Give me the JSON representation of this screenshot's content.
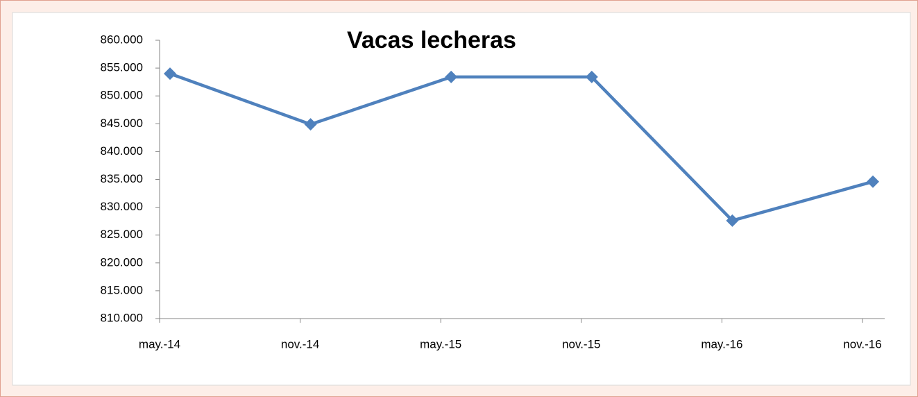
{
  "chart_data": {
    "type": "line",
    "title": "Vacas lecheras",
    "categories": [
      "may.-14",
      "nov.-14",
      "may.-15",
      "nov.-15",
      "may.-16",
      "nov.-16"
    ],
    "series": [
      {
        "name": "Vacas lecheras",
        "color": "#4f81bd",
        "values": [
          854000,
          844900,
          853400,
          853400,
          827600,
          834600
        ]
      }
    ],
    "ylim": [
      810000,
      860000
    ],
    "yticks": [
      {
        "value": 810000,
        "label": "810.000"
      },
      {
        "value": 815000,
        "label": "815.000"
      },
      {
        "value": 820000,
        "label": "820.000"
      },
      {
        "value": 825000,
        "label": "825.000"
      },
      {
        "value": 830000,
        "label": "830.000"
      },
      {
        "value": 835000,
        "label": "835.000"
      },
      {
        "value": 840000,
        "label": "840.000"
      },
      {
        "value": 845000,
        "label": "845.000"
      },
      {
        "value": 850000,
        "label": "850.000"
      },
      {
        "value": 855000,
        "label": "855.000"
      },
      {
        "value": 860000,
        "label": "860.000"
      }
    ],
    "grid": false
  }
}
